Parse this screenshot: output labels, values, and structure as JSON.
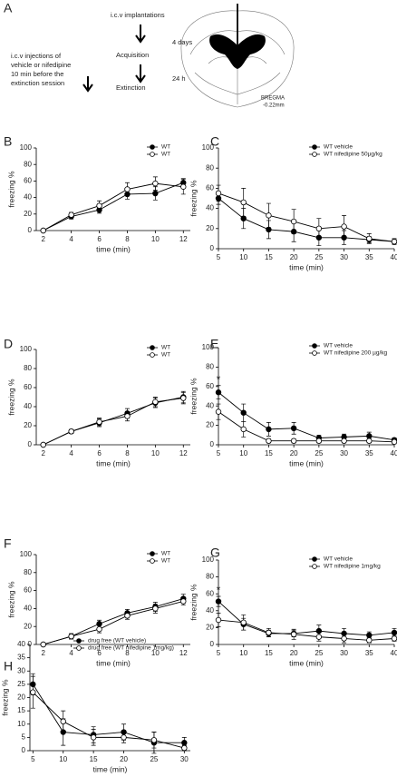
{
  "diagram": {
    "panel": "A",
    "implant": "i.c.v implantations",
    "days": "4 days",
    "acquisition": "Acquisition",
    "hours": "24 h",
    "extinction": "Extinction",
    "injection_lines": [
      "i.c.v injections of",
      "vehicle or nifedipine",
      "10 min before the",
      "extinction session"
    ],
    "bregma": "BREGMA",
    "bregma_value": "-0.22mm"
  },
  "chart_data": [
    {
      "type": "line",
      "panel": "B",
      "xlabel": "time (min)",
      "ylabel": "freezing %",
      "x": [
        2,
        4,
        6,
        8,
        10,
        12
      ],
      "xlim": [
        1.5,
        12.5
      ],
      "xticks": [
        2,
        4,
        6,
        8,
        10,
        12
      ],
      "ylim": [
        0,
        100
      ],
      "yticks": [
        0,
        20,
        40,
        60,
        80,
        100
      ],
      "series": [
        {
          "name": "WT",
          "color": "#000000",
          "marker_fill": "#000000",
          "values": [
            0,
            17,
            25,
            44,
            45,
            58
          ],
          "errors": [
            0,
            3,
            4,
            6,
            8,
            5
          ]
        },
        {
          "name": "WT",
          "color": "#000000",
          "marker_fill": "#ffffff",
          "values": [
            0,
            19,
            30,
            50,
            57,
            53
          ],
          "errors": [
            0,
            3,
            6,
            8,
            8,
            9
          ]
        }
      ]
    },
    {
      "type": "line",
      "panel": "C",
      "xlabel": "time (min)",
      "ylabel": "freezing %",
      "x": [
        5,
        10,
        15,
        20,
        25,
        30,
        35,
        40
      ],
      "xlim": [
        5,
        40
      ],
      "xticks": [
        5,
        10,
        15,
        20,
        25,
        30,
        35,
        40
      ],
      "ylim": [
        0,
        100
      ],
      "yticks": [
        0,
        20,
        40,
        60,
        80,
        100
      ],
      "series": [
        {
          "name": "WT vehicle",
          "color": "#000000",
          "marker_fill": "#000000",
          "values": [
            50,
            30,
            19,
            17,
            11,
            11,
            9,
            7
          ],
          "errors": [
            6,
            10,
            9,
            10,
            8,
            7,
            3,
            2
          ]
        },
        {
          "name": "WT nifedipine 50µg/kg",
          "color": "#000000",
          "marker_fill": "#ffffff",
          "values": [
            55,
            46,
            33,
            27,
            20,
            22,
            10,
            7
          ],
          "errors": [
            8,
            14,
            12,
            12,
            10,
            11,
            5,
            3
          ]
        }
      ]
    },
    {
      "type": "line",
      "panel": "D",
      "xlabel": "time (min)",
      "ylabel": "freezing %",
      "x": [
        2,
        4,
        6,
        8,
        10,
        12
      ],
      "xlim": [
        1.5,
        12.5
      ],
      "xticks": [
        2,
        4,
        6,
        8,
        10,
        12
      ],
      "ylim": [
        0,
        100
      ],
      "yticks": [
        0,
        20,
        40,
        60,
        80,
        100
      ],
      "series": [
        {
          "name": "WT",
          "color": "#000000",
          "marker_fill": "#000000",
          "values": [
            0,
            14,
            23,
            33,
            44,
            50
          ],
          "errors": [
            0,
            2,
            4,
            5,
            5,
            6
          ]
        },
        {
          "name": "WT",
          "color": "#000000",
          "marker_fill": "#ffffff",
          "values": [
            0,
            14,
            24,
            30,
            45,
            49
          ],
          "errors": [
            0,
            2,
            4,
            5,
            5,
            6
          ]
        }
      ]
    },
    {
      "type": "line",
      "panel": "E",
      "xlabel": "time (min)",
      "ylabel": "freezing %",
      "x": [
        5,
        10,
        15,
        20,
        25,
        30,
        35,
        40
      ],
      "xlim": [
        5,
        40
      ],
      "xticks": [
        5,
        10,
        15,
        20,
        25,
        30,
        35,
        40
      ],
      "ylim": [
        0,
        100
      ],
      "yticks": [
        0,
        20,
        40,
        60,
        80,
        100
      ],
      "annotations": [
        "*"
      ],
      "series": [
        {
          "name": "WT vehicle",
          "color": "#000000",
          "marker_fill": "#000000",
          "values": [
            54,
            33,
            16,
            17,
            7,
            8,
            9,
            5
          ],
          "errors": [
            7,
            9,
            7,
            6,
            3,
            3,
            4,
            2
          ]
        },
        {
          "name": "WT nifedipine 200 µg/kg",
          "color": "#000000",
          "marker_fill": "#ffffff",
          "values": [
            34,
            16,
            4,
            4,
            4,
            4,
            4,
            3
          ],
          "errors": [
            8,
            8,
            2,
            2,
            2,
            2,
            2,
            2
          ]
        }
      ]
    },
    {
      "type": "line",
      "panel": "F",
      "xlabel": "time (min)",
      "ylabel": "freezing %",
      "x": [
        2,
        4,
        6,
        8,
        10,
        12
      ],
      "xlim": [
        1.5,
        12.5
      ],
      "xticks": [
        2,
        4,
        6,
        8,
        10,
        12
      ],
      "ylim": [
        0,
        100
      ],
      "yticks": [
        0,
        20,
        40,
        60,
        80,
        100
      ],
      "series": [
        {
          "name": "WT",
          "color": "#000000",
          "marker_fill": "#000000",
          "values": [
            0,
            9,
            23,
            35,
            42,
            51
          ],
          "errors": [
            0,
            3,
            4,
            4,
            5,
            5
          ]
        },
        {
          "name": "WT",
          "color": "#000000",
          "marker_fill": "#ffffff",
          "values": [
            0,
            9,
            17,
            32,
            40,
            48
          ],
          "errors": [
            0,
            3,
            4,
            4,
            5,
            4
          ]
        }
      ]
    },
    {
      "type": "line",
      "panel": "G",
      "xlabel": "time (min)",
      "ylabel": "freezing %",
      "x": [
        5,
        10,
        15,
        20,
        25,
        30,
        35,
        40
      ],
      "xlim": [
        5,
        40
      ],
      "xticks": [
        5,
        10,
        15,
        20,
        25,
        30,
        35,
        40
      ],
      "ylim": [
        0,
        100
      ],
      "yticks": [
        0,
        20,
        40,
        60,
        80,
        100
      ],
      "annotations": [
        "*"
      ],
      "series": [
        {
          "name": "WT vehicle",
          "color": "#000000",
          "marker_fill": "#000000",
          "values": [
            51,
            24,
            13,
            13,
            16,
            13,
            11,
            14
          ],
          "errors": [
            6,
            7,
            4,
            4,
            7,
            6,
            4,
            5
          ]
        },
        {
          "name": "WT nifedipine 1mg/kg",
          "color": "#000000",
          "marker_fill": "#ffffff",
          "values": [
            29,
            26,
            14,
            12,
            9,
            7,
            5,
            7
          ],
          "errors": [
            8,
            9,
            5,
            6,
            5,
            5,
            3,
            3
          ]
        }
      ]
    },
    {
      "type": "line",
      "panel": "H",
      "xlabel": "time (min)",
      "ylabel": "freezing %",
      "x": [
        5,
        10,
        15,
        20,
        25,
        30
      ],
      "xlim": [
        4.5,
        31
      ],
      "xticks": [
        5,
        10,
        15,
        20,
        25,
        30
      ],
      "ylim": [
        0,
        40
      ],
      "yticks": [
        0,
        5,
        10,
        15,
        20,
        25,
        30,
        35,
        40
      ],
      "series": [
        {
          "name": "drug free (WT vehicle)",
          "color": "#000000",
          "marker_fill": "#000000",
          "values": [
            25,
            7,
            6,
            7,
            3,
            3
          ],
          "errors": [
            4,
            5,
            3,
            3,
            4,
            2
          ]
        },
        {
          "name": "drug free (WT nifedipine 1mg/kg)",
          "color": "#000000",
          "marker_fill": "#ffffff",
          "values": [
            22,
            11,
            5,
            5,
            4,
            1
          ],
          "errors": [
            6,
            4,
            3,
            2,
            3,
            1
          ]
        }
      ]
    }
  ]
}
